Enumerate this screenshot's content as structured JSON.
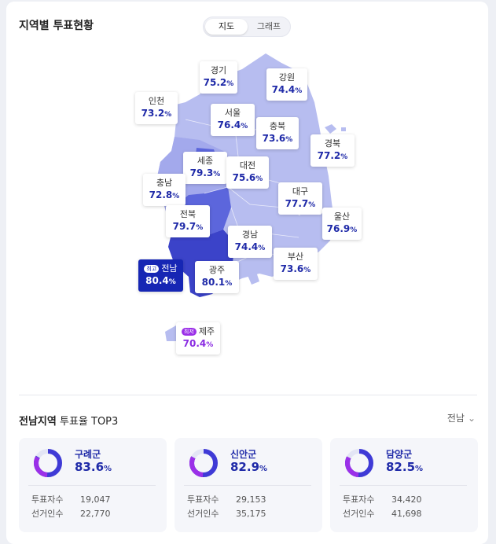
{
  "header": {
    "title": "지역별 투표현황",
    "toggle": [
      "지도",
      "그래프"
    ]
  },
  "map": {
    "colors": {
      "light": "#b7bdf0",
      "mid": "#a8aeee",
      "dark": "#5c66dc",
      "darker": "#3b43c9",
      "max_fill": "#1626b4",
      "min_text": "#8a2be2"
    },
    "unit": "%",
    "regions": [
      {
        "key": "gyeonggi",
        "name": "경기",
        "value": "75.2"
      },
      {
        "key": "gangwon",
        "name": "강원",
        "value": "74.4"
      },
      {
        "key": "incheon",
        "name": "인천",
        "value": "73.2"
      },
      {
        "key": "seoul",
        "name": "서울",
        "value": "76.4"
      },
      {
        "key": "chungbuk",
        "name": "충북",
        "value": "73.6"
      },
      {
        "key": "gyeongbuk",
        "name": "경북",
        "value": "77.2"
      },
      {
        "key": "sejong",
        "name": "세종",
        "value": "79.3"
      },
      {
        "key": "daejeon",
        "name": "대전",
        "value": "75.6"
      },
      {
        "key": "chungnam",
        "name": "충남",
        "value": "72.8"
      },
      {
        "key": "daegu",
        "name": "대구",
        "value": "77.7"
      },
      {
        "key": "jeonbuk",
        "name": "전북",
        "value": "79.7"
      },
      {
        "key": "ulsan",
        "name": "울산",
        "value": "76.9"
      },
      {
        "key": "gyeongnam",
        "name": "경남",
        "value": "74.4"
      },
      {
        "key": "busan",
        "name": "부산",
        "value": "73.6"
      },
      {
        "key": "jeonnam",
        "name": "전남",
        "value": "80.4",
        "badge": "최고"
      },
      {
        "key": "gwangju",
        "name": "광주",
        "value": "80.1"
      },
      {
        "key": "jeju",
        "name": "제주",
        "value": "70.4",
        "badge": "최저"
      }
    ]
  },
  "top3": {
    "region": "전남지역",
    "label": "투표율 TOP3",
    "select": "전남",
    "items": [
      {
        "name": "구례군",
        "pct": "83.6",
        "votes_label": "투표자수",
        "votes": "19,047",
        "electors_label": "선거인수",
        "electors": "22,770"
      },
      {
        "name": "신안군",
        "pct": "82.9",
        "votes_label": "투표자수",
        "votes": "29,153",
        "electors_label": "선거인수",
        "electors": "35,175"
      },
      {
        "name": "담양군",
        "pct": "82.5",
        "votes_label": "투표자수",
        "votes": "34,420",
        "electors_label": "선거인수",
        "electors": "41,698"
      }
    ]
  }
}
